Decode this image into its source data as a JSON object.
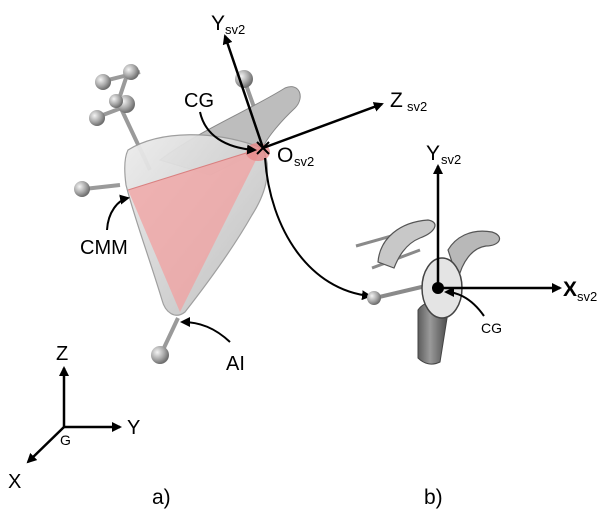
{
  "panel_a": {
    "axis_y_label": "Y",
    "axis_y_sub": "sv2",
    "axis_z_label": "Z",
    "axis_z_sub": "sv2",
    "origin_label": "O",
    "origin_sub": "sv2",
    "cg_label": "CG",
    "cmm_label": "CMM",
    "ai_label": "AI",
    "caption": "a)"
  },
  "panel_b": {
    "axis_y_label": "Y",
    "axis_y_sub": "sv2",
    "axis_x_label": "X",
    "axis_x_sub": "sv2",
    "cg_label": "CG",
    "caption": "b)"
  },
  "global_frame": {
    "z_label": "Z",
    "y_label": "Y",
    "x_label": "X",
    "origin_label": "G"
  },
  "colors": {
    "bone": "#cfcfcf",
    "bone_dark": "#8e8e8e",
    "plane_fill": "#f2a0a0",
    "marker": "#9a9a9a",
    "axis": "#000000"
  }
}
